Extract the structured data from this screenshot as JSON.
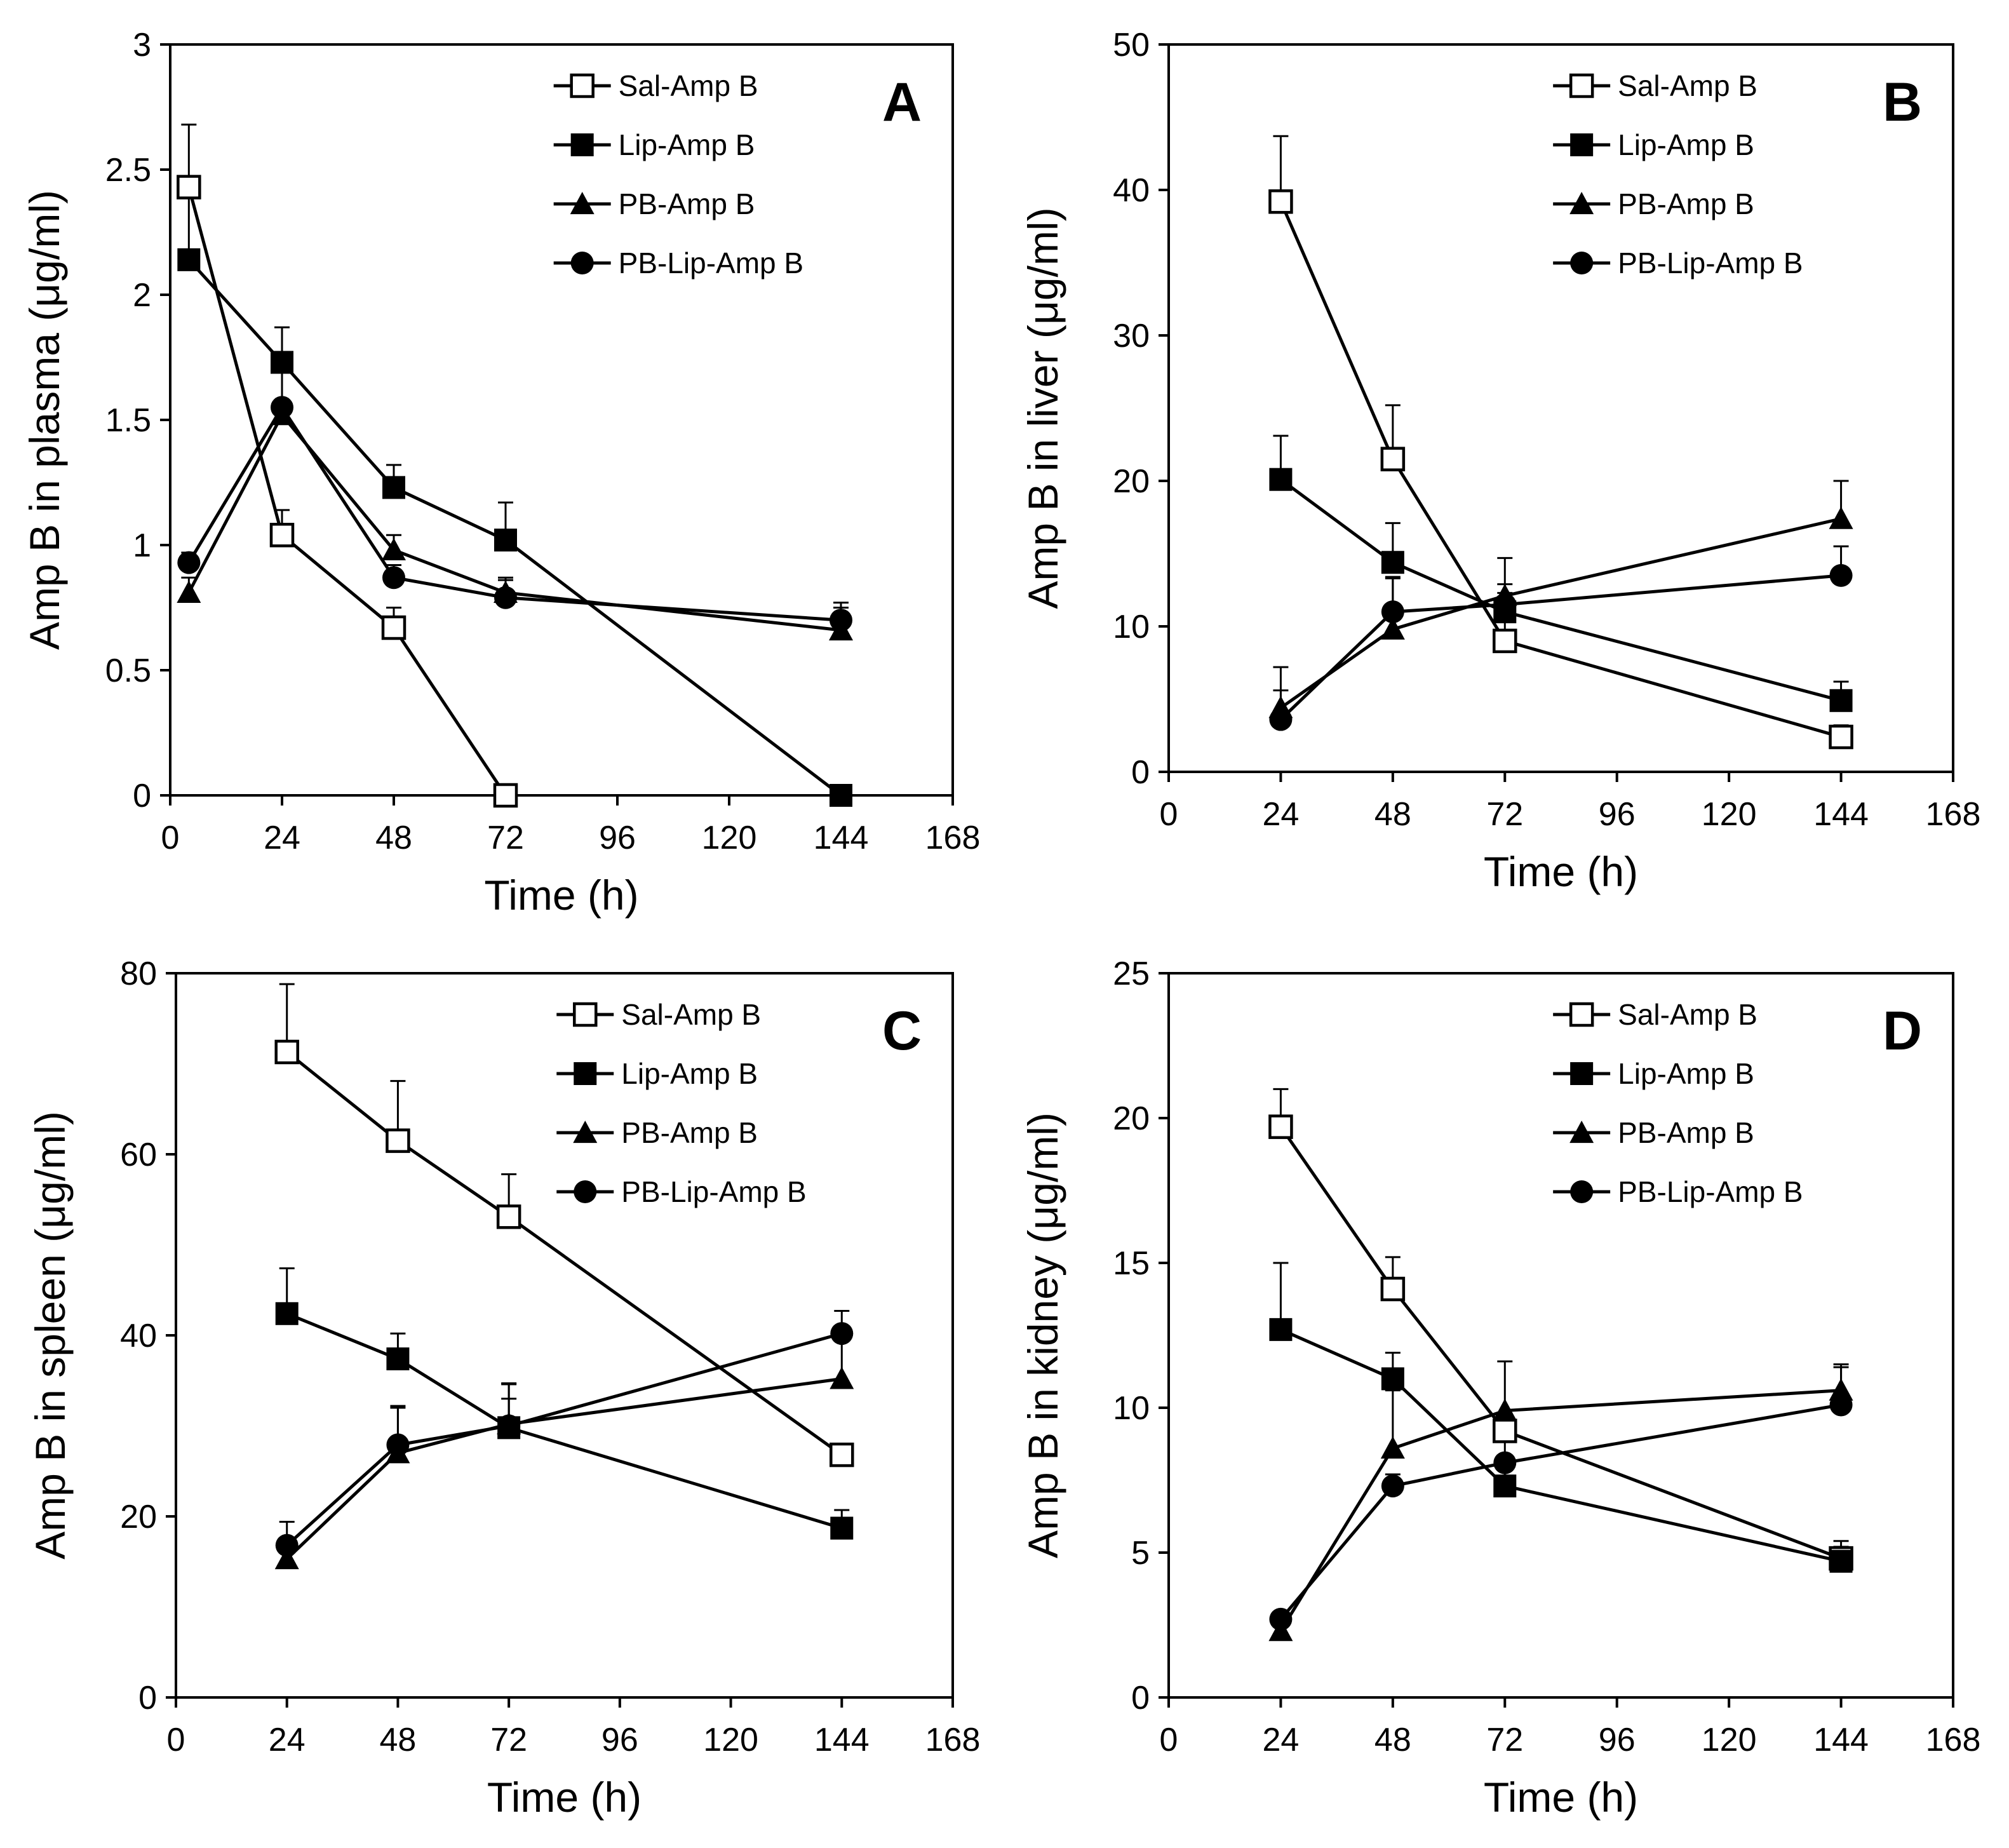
{
  "figure": {
    "background": "#ffffff",
    "ink": "#000000"
  },
  "legend_entries": [
    {
      "label": "Sal-Amp B",
      "marker": "open-square"
    },
    {
      "label": "Lip-Amp B",
      "marker": "filled-square"
    },
    {
      "label": "PB-Amp B",
      "marker": "filled-triangle"
    },
    {
      "label": "PB-Lip-Amp B",
      "marker": "filled-circle"
    }
  ],
  "chart_data": [
    {
      "type": "line",
      "panel": "A",
      "xlabel": "Time (h)",
      "ylabel": "Amp B in plasma (μg/ml)",
      "xlim": [
        0,
        168
      ],
      "ylim": [
        0,
        3
      ],
      "xticks": [
        0,
        24,
        48,
        72,
        96,
        120,
        144,
        168
      ],
      "yticks": [
        0,
        0.5,
        1,
        1.5,
        2,
        2.5,
        3
      ],
      "xtick_labels": [
        "0",
        "24",
        "48",
        "72",
        "96",
        "120",
        "144",
        "168"
      ],
      "ytick_labels": [
        "0",
        "0.5",
        "1",
        "1.5",
        "2",
        "2.5",
        "3"
      ],
      "legend_position": "top-right",
      "series": [
        {
          "name": "Sal-Amp B",
          "x": [
            4,
            24,
            48,
            72
          ],
          "values": [
            2.43,
            1.04,
            0.67,
            0.0
          ],
          "errors": [
            0.25,
            0.1,
            0.08,
            0
          ]
        },
        {
          "name": "Lip-Amp B",
          "x": [
            4,
            24,
            48,
            72,
            144
          ],
          "values": [
            2.14,
            1.73,
            1.23,
            1.02,
            0.0
          ],
          "errors": [
            0.26,
            0.14,
            0.09,
            0.15,
            0
          ]
        },
        {
          "name": "PB-Amp B",
          "x": [
            4,
            24,
            48,
            72,
            144
          ],
          "values": [
            0.81,
            1.52,
            0.98,
            0.81,
            0.66
          ],
          "errors": [
            0.06,
            0.17,
            0.06,
            0.06,
            0.09
          ]
        },
        {
          "name": "PB-Lip-Amp B",
          "x": [
            4,
            24,
            48,
            72,
            144
          ],
          "values": [
            0.93,
            1.55,
            0.87,
            0.79,
            0.7
          ],
          "errors": [
            0.04,
            0.2,
            0.05,
            0.07,
            0.07
          ]
        }
      ]
    },
    {
      "type": "line",
      "panel": "B",
      "xlabel": "Time (h)",
      "ylabel": "Amp B in liver (μg/ml)",
      "xlim": [
        0,
        168
      ],
      "ylim": [
        0,
        50
      ],
      "xticks": [
        0,
        24,
        48,
        72,
        96,
        120,
        144,
        168
      ],
      "yticks": [
        0,
        10,
        20,
        30,
        40,
        50
      ],
      "xtick_labels": [
        "0",
        "24",
        "48",
        "72",
        "96",
        "120",
        "144",
        "168"
      ],
      "ytick_labels": [
        "0",
        "10",
        "20",
        "30",
        "40",
        "50"
      ],
      "legend_position": "top-right",
      "series": [
        {
          "name": "Sal-Amp B",
          "x": [
            24,
            48,
            72,
            144
          ],
          "values": [
            39.2,
            21.5,
            9.0,
            2.4
          ],
          "errors": [
            4.5,
            3.7,
            2.3,
            0.8
          ]
        },
        {
          "name": "Lip-Amp B",
          "x": [
            24,
            48,
            72,
            144
          ],
          "values": [
            20.1,
            14.4,
            11.0,
            4.9
          ],
          "errors": [
            3.0,
            2.7,
            1.3,
            1.3
          ]
        },
        {
          "name": "PB-Amp B",
          "x": [
            24,
            48,
            72,
            144
          ],
          "values": [
            4.4,
            9.8,
            12.1,
            17.4
          ],
          "errors": [
            2.8,
            3.5,
            2.6,
            2.6
          ]
        },
        {
          "name": "PB-Lip-Amp B",
          "x": [
            24,
            48,
            72,
            144
          ],
          "values": [
            3.6,
            11.0,
            11.5,
            13.5
          ],
          "errors": [
            2.0,
            2.4,
            1.4,
            2.0
          ]
        }
      ]
    },
    {
      "type": "line",
      "panel": "C",
      "xlabel": "Time (h)",
      "ylabel": "Amp B in spleen (μg/ml)",
      "xlim": [
        0,
        168
      ],
      "ylim": [
        0,
        80
      ],
      "xticks": [
        0,
        24,
        48,
        72,
        96,
        120,
        144,
        168
      ],
      "yticks": [
        0,
        20,
        40,
        60,
        80
      ],
      "xtick_labels": [
        "0",
        "24",
        "48",
        "72",
        "96",
        "120",
        "144",
        "168"
      ],
      "ytick_labels": [
        "0",
        "20",
        "40",
        "60",
        "80"
      ],
      "legend_position": "top-right",
      "series": [
        {
          "name": "Sal-Amp B",
          "x": [
            24,
            48,
            72,
            144
          ],
          "values": [
            71.3,
            61.5,
            53.1,
            26.8
          ],
          "errors": [
            7.5,
            6.6,
            4.7,
            0
          ]
        },
        {
          "name": "Lip-Amp B",
          "x": [
            24,
            48,
            72,
            144
          ],
          "values": [
            42.4,
            37.4,
            29.8,
            18.7
          ],
          "errors": [
            5.0,
            2.8,
            4.8,
            2.0
          ]
        },
        {
          "name": "PB-Amp B",
          "x": [
            24,
            48,
            72,
            144
          ],
          "values": [
            15.3,
            27.0,
            30.2,
            35.2
          ],
          "errors": [
            2.0,
            5.0,
            4.5,
            4.2
          ]
        },
        {
          "name": "PB-Lip-Amp B",
          "x": [
            24,
            48,
            72,
            144
          ],
          "values": [
            16.8,
            27.9,
            30.0,
            40.2
          ],
          "errors": [
            2.6,
            4.3,
            3.0,
            2.5
          ]
        }
      ]
    },
    {
      "type": "line",
      "panel": "D",
      "xlabel": "Time (h)",
      "ylabel": "Amp B in kidney (μg/ml)",
      "xlim": [
        0,
        168
      ],
      "ylim": [
        0,
        25
      ],
      "xticks": [
        0,
        24,
        48,
        72,
        96,
        120,
        144,
        168
      ],
      "yticks": [
        0,
        5,
        10,
        15,
        20,
        25
      ],
      "xtick_labels": [
        "0",
        "24",
        "48",
        "72",
        "96",
        "120",
        "144",
        "168"
      ],
      "ytick_labels": [
        "0",
        "5",
        "10",
        "15",
        "20",
        "25"
      ],
      "legend_position": "top-right",
      "series": [
        {
          "name": "Sal-Amp B",
          "x": [
            24,
            48,
            72,
            144
          ],
          "values": [
            19.7,
            14.1,
            9.2,
            4.8
          ],
          "errors": [
            1.3,
            1.1,
            2.4,
            0.6
          ]
        },
        {
          "name": "Lip-Amp B",
          "x": [
            24,
            48,
            72,
            144
          ],
          "values": [
            12.7,
            11.0,
            7.3,
            4.7
          ],
          "errors": [
            2.3,
            0.9,
            0.8,
            0.5
          ]
        },
        {
          "name": "PB-Amp B",
          "x": [
            24,
            48,
            72,
            144
          ],
          "values": [
            2.3,
            8.6,
            9.9,
            10.6
          ],
          "errors": [
            0.3,
            2.0,
            0,
            0.9
          ]
        },
        {
          "name": "PB-Lip-Amp B",
          "x": [
            24,
            48,
            72,
            144
          ],
          "values": [
            2.7,
            7.3,
            8.1,
            10.1
          ],
          "errors": [
            0.2,
            0.4,
            1.0,
            1.3
          ]
        }
      ]
    }
  ]
}
